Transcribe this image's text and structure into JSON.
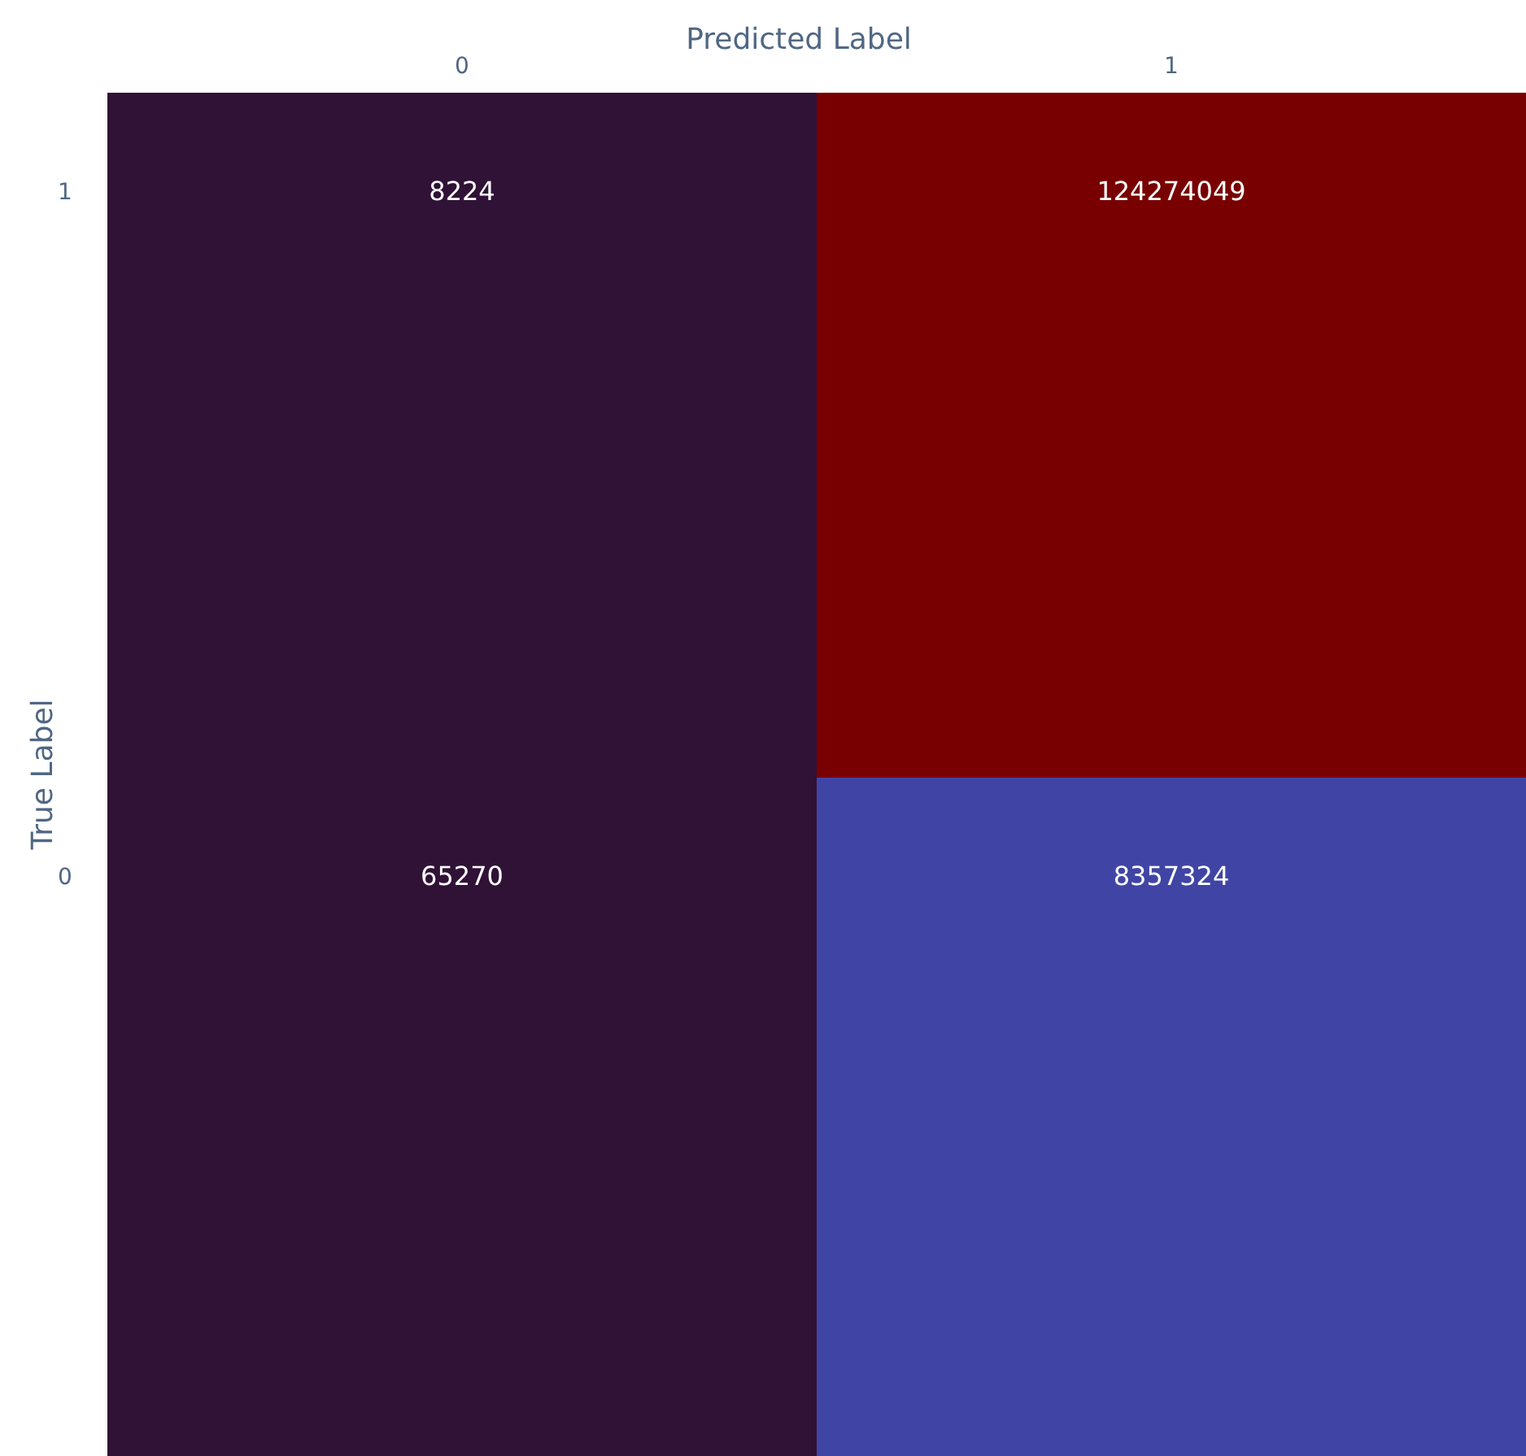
{
  "chart_data": {
    "type": "heatmap",
    "xlabel": "Predicted Label",
    "ylabel": "True Label",
    "categories": [
      "0",
      "1"
    ],
    "y_categories": [
      "1",
      "0"
    ],
    "cells": [
      [
        8224,
        124274049
      ],
      [
        65270,
        8357324
      ]
    ],
    "colors": [
      [
        "#301236",
        "#780000"
      ],
      [
        "#301236",
        "#4045a5"
      ]
    ],
    "data_labels": true
  }
}
